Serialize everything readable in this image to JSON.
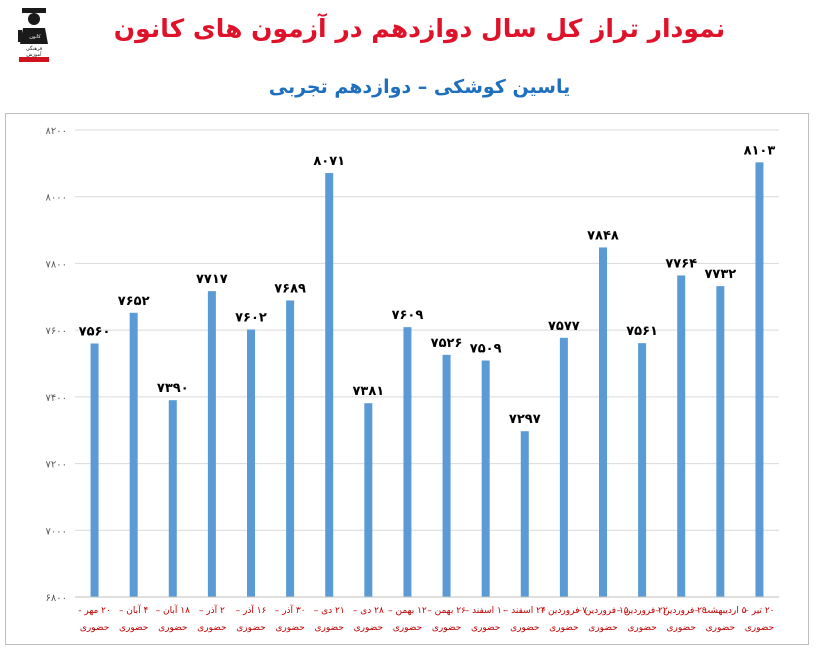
{
  "logo": {
    "lines": [
      "کانون",
      "فرهنگی",
      "آموزش"
    ]
  },
  "chart_data": {
    "type": "bar",
    "title": "نمودار تراز کل سال دوازدهم در آزمون های کانون",
    "subtitle": "یاسین کوشکی – دوازدهم تجربی",
    "xlabel": "",
    "ylabel": "",
    "ylim": [
      6800,
      8200
    ],
    "yticks": [
      6800,
      7000,
      7200,
      7400,
      7600,
      7800,
      8000,
      8200
    ],
    "ytick_labels": [
      "۶۸۰۰",
      "۷۰۰۰",
      "۷۲۰۰",
      "۷۴۰۰",
      "۷۶۰۰",
      "۷۸۰۰",
      "۸۰۰۰",
      "۸۲۰۰"
    ],
    "grid": true,
    "bar_color": "#5b9bd5",
    "label_color": "#c00000",
    "categories": [
      [
        "۲۰ مهر -",
        "حضوری"
      ],
      [
        "۴ آبان –",
        "حضوری"
      ],
      [
        "۱۸ آبان –",
        "حضوری"
      ],
      [
        "۲ آذر –",
        "حضوری"
      ],
      [
        "۱۶ آذر –",
        "حضوری"
      ],
      [
        "۳۰ آذر –",
        "حضوری"
      ],
      [
        "۲۱ دی –",
        "حضوری"
      ],
      [
        "۲۸ دی –",
        "حضوری"
      ],
      [
        "۱۲ بهمن –",
        "حضوری"
      ],
      [
        "۲۶ بهمن –",
        "حضوری"
      ],
      [
        "۱۰ اسفند –",
        "حضوری"
      ],
      [
        "۲۴ اسفند –",
        "حضوری"
      ],
      [
        "۷ فروردین –",
        "حضوری"
      ],
      [
        "۱۵ فروردین –",
        "حضوری"
      ],
      [
        "۲۲ فروردین –",
        "حضوری"
      ],
      [
        "۲۹ فروردین –",
        "حضوری"
      ],
      [
        "۵ اردیبهشت –",
        "حضوری"
      ],
      [
        "۲۰ تیر –",
        "حضوری"
      ]
    ],
    "values": [
      7560,
      7652,
      7390,
      7717,
      7602,
      7689,
      8071,
      7381,
      7609,
      7526,
      7509,
      7297,
      7577,
      7848,
      7561,
      7764,
      7732,
      8103
    ],
    "value_labels": [
      "۷۵۶۰",
      "۷۶۵۲",
      "۷۳۹۰",
      "۷۷۱۷",
      "۷۶۰۲",
      "۷۶۸۹",
      "۸۰۷۱",
      "۷۳۸۱",
      "۷۶۰۹",
      "۷۵۲۶",
      "۷۵۰۹",
      "۷۲۹۷",
      "۷۵۷۷",
      "۷۸۴۸",
      "۷۵۶۱",
      "۷۷۶۴",
      "۷۷۳۲",
      "۸۱۰۳"
    ]
  }
}
